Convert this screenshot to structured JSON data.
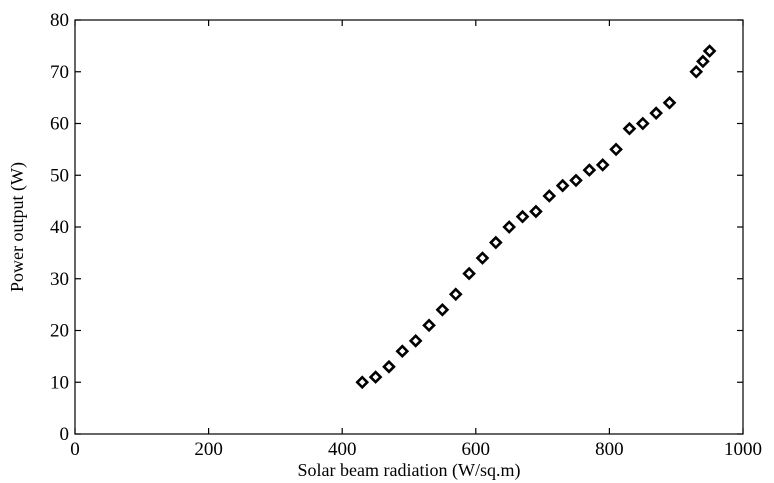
{
  "chart_data": {
    "type": "scatter",
    "title": "",
    "xlabel": "Solar beam radiation (W/sq.m)",
    "ylabel": "Power output (W)",
    "xlim": [
      0,
      1000
    ],
    "ylim": [
      0,
      80
    ],
    "xticks": [
      "0",
      "200",
      "400",
      "600",
      "800",
      "1000"
    ],
    "yticks": [
      "0",
      "10",
      "20",
      "30",
      "40",
      "50",
      "60",
      "70",
      "80"
    ],
    "grid": false,
    "marker": "diamond",
    "marker_color": "#000000",
    "series": [
      {
        "x": [
          430,
          450,
          470,
          490,
          510,
          530,
          550,
          570,
          590,
          610,
          630,
          650,
          670,
          690,
          710,
          730,
          750,
          770,
          790,
          810,
          830,
          850,
          870,
          890,
          930,
          940,
          950
        ],
        "y": [
          10,
          11,
          13,
          16,
          18,
          21,
          24,
          27,
          31,
          34,
          37,
          40,
          42,
          43,
          46,
          48,
          49,
          51,
          52,
          55,
          59,
          60,
          62,
          64,
          70,
          72,
          74
        ]
      }
    ]
  }
}
